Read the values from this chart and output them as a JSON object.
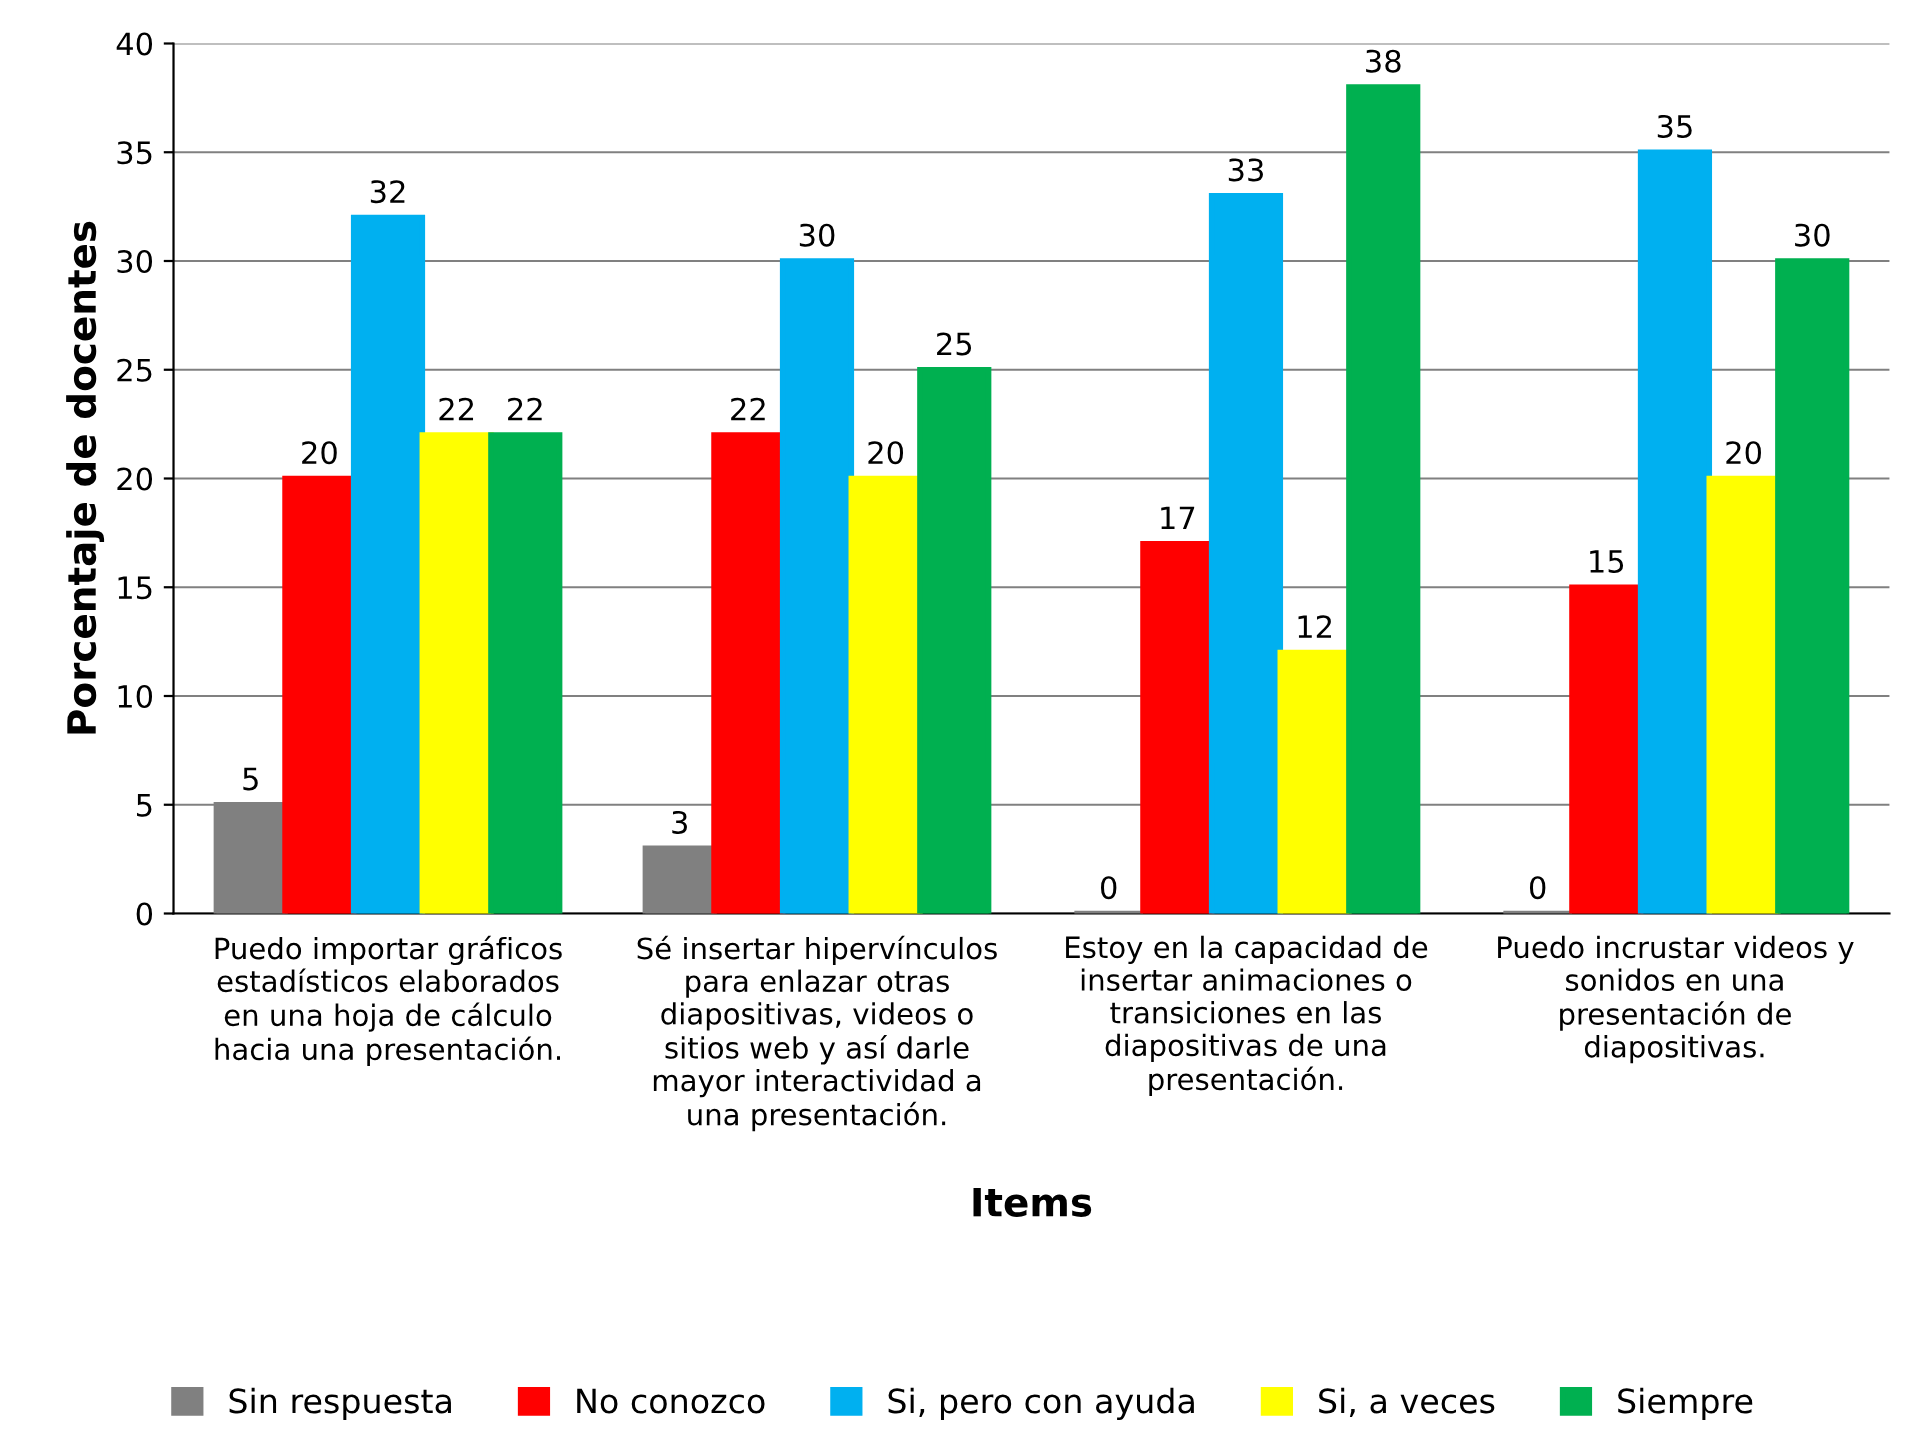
{
  "chart_data": {
    "type": "bar",
    "xlabel": "Items",
    "ylabel": "Porcentaje de docentes",
    "categories": [
      "Puedo importar gráficos\nestadísticos elaborados\nen una hoja de cálculo\nhacia una presentación.",
      "Sé insertar hipervínculos\npara enlazar otras\ndiapositivas, videos o\nsitios web y así darle\nmayor interactividad a\nuna presentación.",
      "Estoy en la capacidad de\ninsertar animaciones o\ntransiciones en las\ndiapositivas de una\npresentación.",
      "Puedo incrustar videos y\nsonidos en una\npresentación de\ndiapositivas."
    ],
    "series": [
      {
        "name": "Sin respuesta",
        "color": "#808080",
        "values": [
          5,
          3,
          0,
          0
        ]
      },
      {
        "name": "No conozco",
        "color": "#ff0000",
        "values": [
          20,
          22,
          17,
          15
        ]
      },
      {
        "name": "Si, pero con ayuda",
        "color": "#00b0f0",
        "values": [
          32,
          30,
          33,
          35
        ]
      },
      {
        "name": "Si, a veces",
        "color": "#ffff00",
        "values": [
          22,
          20,
          12,
          20
        ]
      },
      {
        "name": "Siempre",
        "color": "#00b050",
        "values": [
          22,
          25,
          38,
          30
        ]
      }
    ],
    "ylim": [
      0,
      40
    ],
    "yticks": [
      0,
      5,
      10,
      15,
      20,
      25,
      30,
      35,
      40
    ],
    "grid": "y",
    "legend": "bottom",
    "data_labels": true
  }
}
